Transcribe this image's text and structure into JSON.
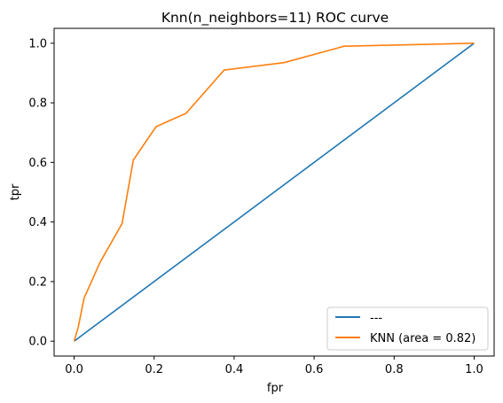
{
  "chart_data": {
    "type": "line",
    "title": "Knn(n_neighbors=11) ROC curve",
    "xlabel": "fpr",
    "ylabel": "tpr",
    "xlim": [
      -0.05,
      1.05
    ],
    "ylim": [
      -0.05,
      1.05
    ],
    "xticks": [
      0.0,
      0.2,
      0.4,
      0.6,
      0.8,
      1.0
    ],
    "yticks": [
      0.0,
      0.2,
      0.4,
      0.6,
      0.8,
      1.0
    ],
    "xtick_labels": [
      "0.0",
      "0.2",
      "0.4",
      "0.6",
      "0.8",
      "1.0"
    ],
    "ytick_labels": [
      "0.0",
      "0.2",
      "0.4",
      "0.6",
      "0.8",
      "1.0"
    ],
    "grid": false,
    "legend_position": "lower-right",
    "series": [
      {
        "name": "---",
        "color": "#1f77b4",
        "x": [
          0.0,
          1.0
        ],
        "y": [
          0.0,
          1.0
        ]
      },
      {
        "name": "KNN (area = 0.82)",
        "color": "#ff7f0e",
        "x": [
          0.0,
          0.01,
          0.025,
          0.065,
          0.12,
          0.148,
          0.205,
          0.28,
          0.375,
          0.525,
          0.675,
          1.0
        ],
        "y": [
          0.0,
          0.045,
          0.145,
          0.265,
          0.395,
          0.608,
          0.72,
          0.765,
          0.91,
          0.935,
          0.99,
          1.0
        ]
      }
    ]
  }
}
